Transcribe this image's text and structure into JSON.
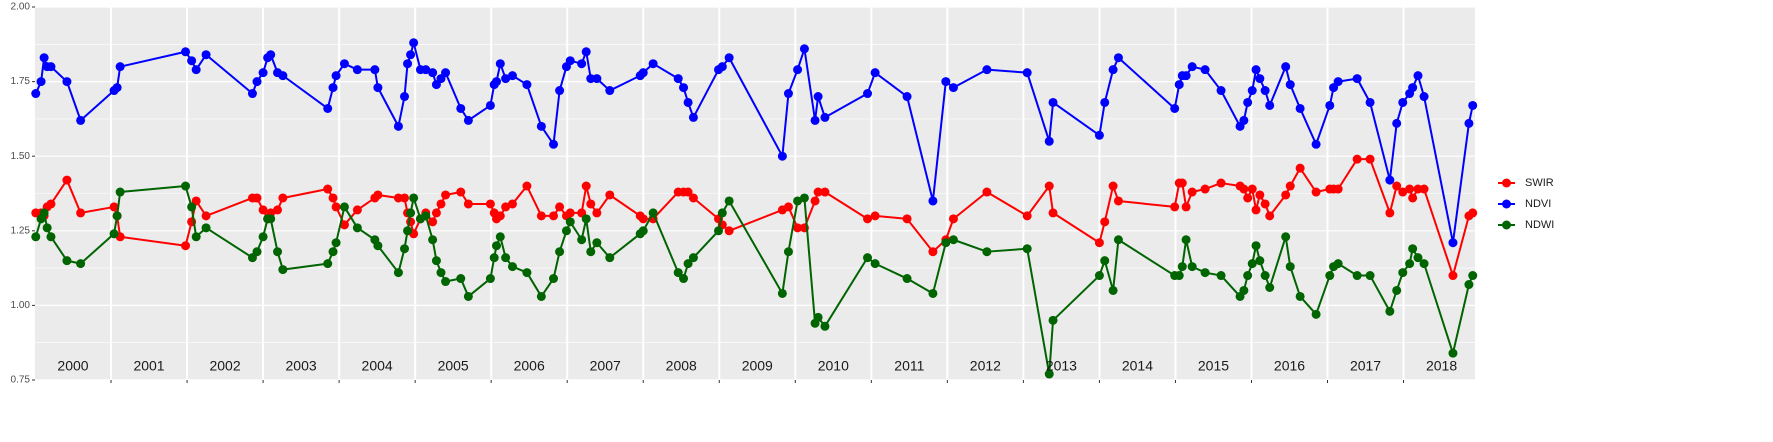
{
  "chart_data": {
    "type": "line",
    "x": [
      2000.01,
      2000.08,
      2000.12,
      2000.16,
      2000.21,
      2000.42,
      2000.6,
      2001.04,
      2001.08,
      2001.12,
      2001.98,
      2002.06,
      2002.12,
      2002.25,
      2002.86,
      2002.92,
      2003.0,
      2003.06,
      2003.1,
      2003.19,
      2003.26,
      2003.85,
      2003.92,
      2003.96,
      2004.07,
      2004.24,
      2004.47,
      2004.51,
      2004.78,
      2004.86,
      2004.9,
      2004.94,
      2004.98,
      2005.07,
      2005.14,
      2005.23,
      2005.28,
      2005.34,
      2005.4,
      2005.6,
      2005.7,
      2005.99,
      2006.04,
      2006.07,
      2006.12,
      2006.19,
      2006.28,
      2006.47,
      2006.66,
      2006.82,
      2006.9,
      2006.99,
      2007.04,
      2007.19,
      2007.25,
      2007.31,
      2007.39,
      2007.56,
      2007.96,
      2008.0,
      2008.13,
      2008.46,
      2008.53,
      2008.59,
      2008.66,
      2008.99,
      2009.04,
      2009.13,
      2009.83,
      2009.91,
      2010.03,
      2010.12,
      2010.26,
      2010.3,
      2010.39,
      2010.95,
      2011.05,
      2011.47,
      2011.81,
      2011.98,
      2012.08,
      2012.52,
      2013.05,
      2013.34,
      2013.39,
      2014.0,
      2014.07,
      2014.18,
      2014.25,
      2014.99,
      2015.05,
      2015.09,
      2015.14,
      2015.22,
      2015.39,
      2015.6,
      2015.85,
      2015.9,
      2015.95,
      2016.01,
      2016.06,
      2016.11,
      2016.18,
      2016.24,
      2016.45,
      2016.51,
      2016.64,
      2016.85,
      2017.03,
      2017.08,
      2017.14,
      2017.39,
      2017.56,
      2017.82,
      2017.91,
      2017.99,
      2018.08,
      2018.12,
      2018.19,
      2018.27,
      2018.65,
      2018.86,
      2018.91
    ],
    "series": [
      {
        "name": "SWIR",
        "color": "#ff0000",
        "values": [
          1.31,
          1.31,
          1.3,
          1.33,
          1.34,
          1.42,
          1.31,
          1.33,
          1.3,
          1.23,
          1.2,
          1.28,
          1.35,
          1.3,
          1.36,
          1.36,
          1.32,
          1.29,
          1.31,
          1.32,
          1.36,
          1.39,
          1.36,
          1.33,
          1.27,
          1.32,
          1.36,
          1.37,
          1.36,
          1.36,
          1.31,
          1.28,
          1.24,
          1.29,
          1.31,
          1.28,
          1.31,
          1.34,
          1.37,
          1.38,
          1.34,
          1.34,
          1.31,
          1.29,
          1.3,
          1.33,
          1.34,
          1.4,
          1.3,
          1.3,
          1.33,
          1.3,
          1.31,
          1.31,
          1.4,
          1.34,
          1.31,
          1.37,
          1.3,
          1.29,
          1.29,
          1.38,
          1.38,
          1.38,
          1.36,
          1.29,
          1.27,
          1.25,
          1.32,
          1.33,
          1.26,
          1.26,
          1.35,
          1.38,
          1.38,
          1.29,
          1.3,
          1.29,
          1.18,
          1.22,
          1.29,
          1.38,
          1.3,
          1.4,
          1.31,
          1.21,
          1.28,
          1.4,
          1.35,
          1.33,
          1.41,
          1.41,
          1.33,
          1.38,
          1.39,
          1.41,
          1.4,
          1.39,
          1.36,
          1.39,
          1.32,
          1.37,
          1.34,
          1.3,
          1.37,
          1.4,
          1.46,
          1.38,
          1.39,
          1.39,
          1.39,
          1.49,
          1.49,
          1.31,
          1.4,
          1.38,
          1.39,
          1.36,
          1.39,
          1.39,
          1.1,
          1.3,
          1.31
        ]
      },
      {
        "name": "NDVI",
        "color": "#0000ff",
        "values": [
          1.71,
          1.75,
          1.83,
          1.8,
          1.8,
          1.75,
          1.62,
          1.72,
          1.73,
          1.8,
          1.85,
          1.82,
          1.79,
          1.84,
          1.71,
          1.75,
          1.78,
          1.83,
          1.84,
          1.78,
          1.77,
          1.66,
          1.73,
          1.77,
          1.81,
          1.79,
          1.79,
          1.73,
          1.6,
          1.7,
          1.81,
          1.84,
          1.88,
          1.79,
          1.79,
          1.78,
          1.74,
          1.76,
          1.78,
          1.66,
          1.62,
          1.67,
          1.74,
          1.75,
          1.81,
          1.76,
          1.77,
          1.74,
          1.6,
          1.54,
          1.72,
          1.8,
          1.82,
          1.81,
          1.85,
          1.76,
          1.76,
          1.72,
          1.77,
          1.78,
          1.81,
          1.76,
          1.73,
          1.68,
          1.63,
          1.79,
          1.8,
          1.83,
          1.5,
          1.71,
          1.79,
          1.86,
          1.62,
          1.7,
          1.63,
          1.71,
          1.78,
          1.7,
          1.35,
          1.75,
          1.73,
          1.79,
          1.78,
          1.55,
          1.68,
          1.57,
          1.68,
          1.79,
          1.83,
          1.66,
          1.74,
          1.77,
          1.77,
          1.8,
          1.79,
          1.72,
          1.6,
          1.62,
          1.68,
          1.72,
          1.79,
          1.76,
          1.72,
          1.67,
          1.8,
          1.74,
          1.66,
          1.54,
          1.67,
          1.73,
          1.75,
          1.76,
          1.68,
          1.42,
          1.61,
          1.68,
          1.71,
          1.73,
          1.77,
          1.7,
          1.21,
          1.61,
          1.67
        ]
      },
      {
        "name": "NDWI",
        "color": "#006400",
        "values": [
          1.23,
          1.29,
          1.31,
          1.26,
          1.23,
          1.15,
          1.14,
          1.24,
          1.3,
          1.38,
          1.4,
          1.33,
          1.23,
          1.26,
          1.16,
          1.18,
          1.23,
          1.29,
          1.29,
          1.18,
          1.12,
          1.14,
          1.18,
          1.21,
          1.33,
          1.26,
          1.22,
          1.2,
          1.11,
          1.19,
          1.25,
          1.31,
          1.36,
          1.29,
          1.3,
          1.22,
          1.15,
          1.11,
          1.08,
          1.09,
          1.03,
          1.09,
          1.16,
          1.2,
          1.23,
          1.16,
          1.13,
          1.11,
          1.03,
          1.09,
          1.18,
          1.25,
          1.28,
          1.22,
          1.29,
          1.18,
          1.21,
          1.16,
          1.24,
          1.25,
          1.31,
          1.11,
          1.09,
          1.14,
          1.16,
          1.25,
          1.31,
          1.35,
          1.04,
          1.18,
          1.35,
          1.36,
          0.94,
          0.96,
          0.93,
          1.16,
          1.14,
          1.09,
          1.04,
          1.21,
          1.22,
          1.18,
          1.19,
          0.77,
          0.95,
          1.1,
          1.15,
          1.05,
          1.22,
          1.1,
          1.1,
          1.13,
          1.22,
          1.13,
          1.11,
          1.1,
          1.03,
          1.05,
          1.1,
          1.14,
          1.2,
          1.15,
          1.1,
          1.06,
          1.23,
          1.13,
          1.03,
          0.97,
          1.1,
          1.13,
          1.14,
          1.1,
          1.1,
          0.98,
          1.05,
          1.11,
          1.14,
          1.19,
          1.16,
          1.14,
          0.84,
          1.07,
          1.1
        ]
      }
    ],
    "xlim": [
      2000,
      2018.94
    ],
    "xticks": [
      2001,
      2002,
      2003,
      2004,
      2005,
      2006,
      2007,
      2008,
      2009,
      2010,
      2011,
      2012,
      2013,
      2014,
      2015,
      2016,
      2017,
      2018
    ],
    "year_labels": [
      {
        "value": 2000.5,
        "label": "2000"
      },
      {
        "value": 2001.5,
        "label": "2001"
      },
      {
        "value": 2002.5,
        "label": "2002"
      },
      {
        "value": 2003.5,
        "label": "2003"
      },
      {
        "value": 2004.5,
        "label": "2004"
      },
      {
        "value": 2005.5,
        "label": "2005"
      },
      {
        "value": 2006.5,
        "label": "2006"
      },
      {
        "value": 2007.5,
        "label": "2007"
      },
      {
        "value": 2008.5,
        "label": "2008"
      },
      {
        "value": 2009.5,
        "label": "2009"
      },
      {
        "value": 2010.5,
        "label": "2010"
      },
      {
        "value": 2011.5,
        "label": "2011"
      },
      {
        "value": 2012.5,
        "label": "2012"
      },
      {
        "value": 2013.5,
        "label": "2013"
      },
      {
        "value": 2014.5,
        "label": "2014"
      },
      {
        "value": 2015.5,
        "label": "2015"
      },
      {
        "value": 2016.5,
        "label": "2016"
      },
      {
        "value": 2017.5,
        "label": "2017"
      },
      {
        "value": 2018.5,
        "label": "2018"
      }
    ],
    "ylim": [
      0.75,
      2.0
    ],
    "yticks": [
      0.75,
      {
        "value": 1.0,
        "label": "1.00"
      },
      1.25,
      {
        "value": 1.5,
        "label": "1.50"
      },
      1.75,
      {
        "value": 2.0,
        "label": "2.00"
      }
    ],
    "grid": true,
    "legend": "right"
  }
}
